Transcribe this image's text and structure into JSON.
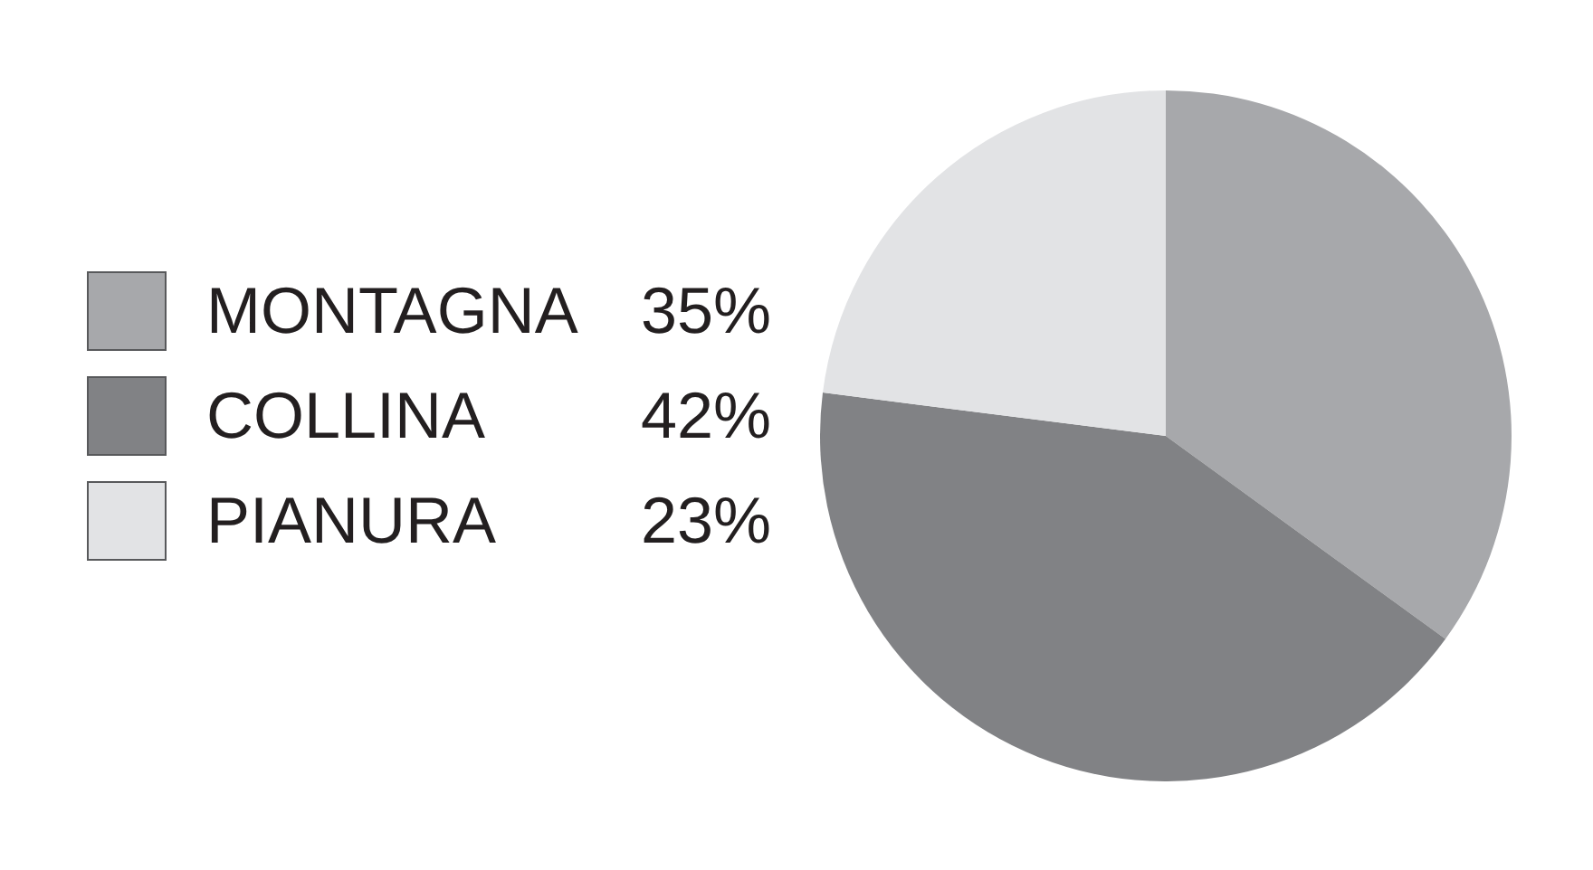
{
  "chart_data": {
    "type": "pie",
    "categories": [
      "MONTAGNA",
      "COLLINA",
      "PIANURA"
    ],
    "values": [
      35,
      42,
      23
    ],
    "colors": [
      "#a7a8ab",
      "#818285",
      "#e2e3e5"
    ],
    "value_labels": [
      "35%",
      "42%",
      "23%"
    ],
    "legend": "left"
  }
}
